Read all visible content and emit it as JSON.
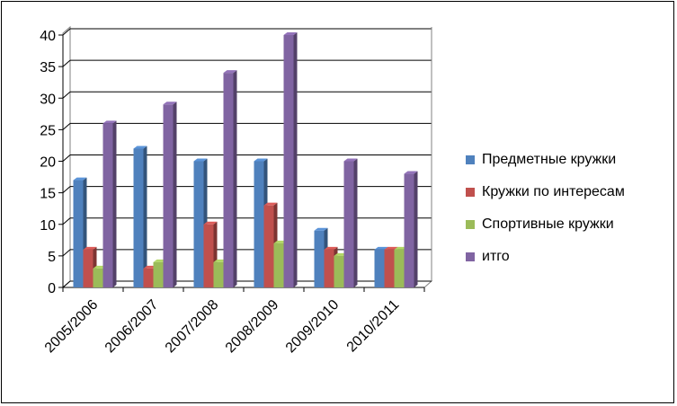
{
  "chart_data": {
    "type": "bar",
    "categories": [
      "2005/2006",
      "2006/2007",
      "2007/2008",
      "2008/2009",
      "2009/2010",
      "2010/2011"
    ],
    "series": [
      {
        "name": "Предметные кружки",
        "color": "#4F81BD",
        "values": [
          17,
          22,
          20,
          20,
          9,
          6
        ]
      },
      {
        "name": "Кружки по интересам",
        "color": "#C0504D",
        "values": [
          6,
          3,
          10,
          13,
          6,
          6
        ]
      },
      {
        "name": "Спортивные кружки",
        "color": "#9BBB59",
        "values": [
          3,
          4,
          4,
          7,
          5,
          6
        ]
      },
      {
        "name": "итго",
        "color": "#8064A2",
        "values": [
          26,
          29,
          34,
          40,
          20,
          18
        ]
      }
    ],
    "yticks": [
      "0",
      "5",
      "10",
      "15",
      "20",
      "25",
      "30",
      "35",
      "40"
    ],
    "ylim": [
      0,
      40
    ],
    "grid": true,
    "legend_position": "right",
    "style": "3d-clustered-column"
  }
}
